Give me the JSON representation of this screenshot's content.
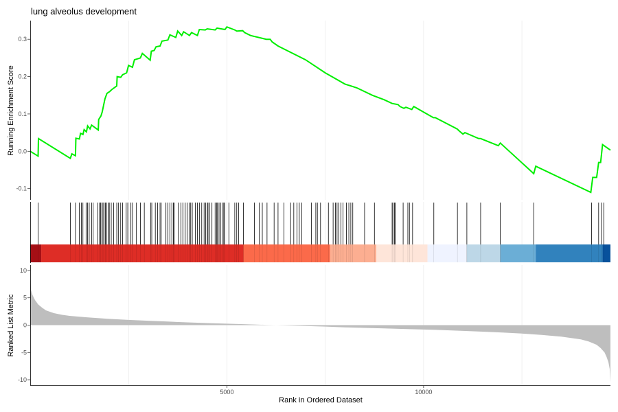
{
  "chart_data": {
    "type": "line",
    "title": "lung alveolus development",
    "x_axis": {
      "label": "Rank in Ordered Dataset",
      "range": [
        0,
        14750
      ],
      "ticks": [
        5000,
        10000
      ],
      "tick_labels": [
        "5000",
        "10000"
      ]
    },
    "vertical_gridlines": [
      2500,
      5000,
      7500,
      10000,
      12500
    ],
    "panels": [
      {
        "name": "running-enrichment-score",
        "type": "line",
        "ylabel": "Running Enrichment Score",
        "ylim": [
          -0.13,
          0.35
        ],
        "yticks": [
          -0.1,
          0.0,
          0.1,
          0.2,
          0.3
        ],
        "ytick_labels": [
          "-0.1",
          "0.0",
          "0.1",
          "0.2",
          "0.3"
        ],
        "line_color": "#00ee00",
        "x": [
          0,
          200,
          210,
          1020,
          1060,
          1150,
          1160,
          1250,
          1280,
          1340,
          1370,
          1430,
          1460,
          1520,
          1560,
          1730,
          1740,
          1800,
          1830,
          1900,
          1950,
          2020,
          2070,
          2200,
          2210,
          2300,
          2350,
          2450,
          2500,
          2600,
          2650,
          2800,
          2850,
          3050,
          3080,
          3150,
          3200,
          3300,
          3350,
          3500,
          3550,
          3700,
          3750,
          3850,
          3900,
          4050,
          4100,
          4250,
          4300,
          4450,
          4500,
          4700,
          4750,
          4950,
          5000,
          5200,
          5250,
          5400,
          5450,
          5600,
          6000,
          6100,
          6150,
          6300,
          7000,
          7500,
          8000,
          8300,
          8700,
          9000,
          9200,
          9350,
          9400,
          9500,
          9550,
          9700,
          9750,
          10250,
          10300,
          10850,
          10900,
          11000,
          11050,
          11400,
          11450,
          11900,
          11950,
          12800,
          12850,
          14250,
          14300,
          14400,
          14450,
          14500,
          14550,
          14750
        ],
        "y": [
          0.0,
          -0.013,
          0.034,
          -0.019,
          -0.007,
          -0.012,
          0.035,
          0.033,
          0.048,
          0.045,
          0.058,
          0.052,
          0.068,
          0.06,
          0.07,
          0.057,
          0.085,
          0.095,
          0.105,
          0.14,
          0.155,
          0.16,
          0.165,
          0.175,
          0.2,
          0.198,
          0.205,
          0.21,
          0.23,
          0.225,
          0.245,
          0.25,
          0.262,
          0.244,
          0.268,
          0.27,
          0.28,
          0.282,
          0.295,
          0.298,
          0.312,
          0.305,
          0.322,
          0.31,
          0.32,
          0.31,
          0.318,
          0.31,
          0.326,
          0.325,
          0.328,
          0.325,
          0.33,
          0.326,
          0.333,
          0.325,
          0.322,
          0.323,
          0.318,
          0.31,
          0.3,
          0.3,
          0.293,
          0.282,
          0.245,
          0.21,
          0.18,
          0.17,
          0.15,
          0.138,
          0.128,
          0.125,
          0.12,
          0.115,
          0.118,
          0.112,
          0.12,
          0.09,
          0.09,
          0.06,
          0.055,
          0.046,
          0.05,
          0.034,
          0.034,
          0.015,
          0.022,
          -0.06,
          -0.04,
          -0.11,
          -0.07,
          -0.07,
          -0.03,
          -0.03,
          0.018,
          0.003
        ]
      },
      {
        "name": "gene-hits",
        "type": "rug",
        "positions": [
          200,
          1020,
          1150,
          1250,
          1300,
          1340,
          1420,
          1460,
          1500,
          1560,
          1600,
          1720,
          1760,
          1790,
          1820,
          1850,
          1880,
          1910,
          1940,
          1980,
          2010,
          2060,
          2120,
          2200,
          2240,
          2300,
          2350,
          2440,
          2480,
          2560,
          2600,
          2700,
          2800,
          2900,
          3060,
          3090,
          3180,
          3240,
          3300,
          3330,
          3450,
          3500,
          3550,
          3600,
          3640,
          3660,
          3760,
          3830,
          3880,
          3940,
          3990,
          4040,
          4080,
          4120,
          4200,
          4250,
          4300,
          4360,
          4420,
          4460,
          4500,
          4520,
          4560,
          4620,
          4700,
          4740,
          4760,
          4800,
          4840,
          4880,
          4920,
          4940,
          5050,
          5200,
          5250,
          5300,
          5420,
          5700,
          5820,
          5900,
          6020,
          6200,
          6300,
          6450,
          6620,
          6700,
          6780,
          6840,
          6900,
          7150,
          7260,
          7300,
          7380,
          7580,
          7700,
          7760,
          7800,
          7840,
          7900,
          7950,
          8040,
          8100,
          8150,
          8200,
          8500,
          8750,
          9200,
          9220,
          9260,
          9280,
          9480,
          9600,
          9640,
          9720,
          10260,
          10860,
          11100,
          11450,
          11950,
          12800,
          14270,
          14450,
          14520,
          14580
        ]
      },
      {
        "name": "ranked-list-metric",
        "type": "area",
        "ylabel": "Ranked List Metric",
        "ylim": [
          -11,
          11
        ],
        "yticks": [
          10,
          5,
          0,
          -5,
          -10
        ],
        "ytick_labels": [
          "10",
          "5",
          "0",
          "-5",
          "-10"
        ],
        "fill_color": "#bebebe",
        "x": [
          0,
          20,
          60,
          120,
          200,
          300,
          400,
          600,
          800,
          1000,
          1500,
          2000,
          2500,
          3000,
          3500,
          4000,
          4500,
          5000,
          5500,
          6000,
          6500,
          7000,
          7500,
          8000,
          8500,
          9000,
          9500,
          10000,
          10500,
          11000,
          11500,
          12000,
          12500,
          13000,
          13500,
          14000,
          14200,
          14400,
          14500,
          14600,
          14650,
          14700,
          14730,
          14750
        ],
        "y": [
          8.5,
          6.5,
          5.5,
          4.6,
          3.8,
          3.2,
          2.7,
          2.2,
          1.9,
          1.7,
          1.4,
          1.15,
          0.95,
          0.8,
          0.65,
          0.5,
          0.38,
          0.27,
          0.15,
          0.05,
          -0.05,
          -0.15,
          -0.27,
          -0.4,
          -0.5,
          -0.6,
          -0.7,
          -0.8,
          -0.9,
          -1.05,
          -1.2,
          -1.35,
          -1.55,
          -1.8,
          -2.1,
          -2.6,
          -3.0,
          -3.6,
          -4.2,
          -5.0,
          -5.8,
          -6.8,
          -8.0,
          -10.5
        ]
      }
    ],
    "rank_color_bar": [
      {
        "from": 0,
        "to": 280,
        "color": "#a50f15"
      },
      {
        "from": 280,
        "to": 5420,
        "color": "#de2d26"
      },
      {
        "from": 5420,
        "to": 7620,
        "color": "#fb6a4a"
      },
      {
        "from": 7620,
        "to": 8800,
        "color": "#fcae91"
      },
      {
        "from": 8800,
        "to": 10100,
        "color": "#fee5d9"
      },
      {
        "from": 10100,
        "to": 11100,
        "color": "#eff3ff"
      },
      {
        "from": 11100,
        "to": 11950,
        "color": "#bdd7e7"
      },
      {
        "from": 11950,
        "to": 12850,
        "color": "#6baed6"
      },
      {
        "from": 12850,
        "to": 14550,
        "color": "#3182bd"
      },
      {
        "from": 14550,
        "to": 14750,
        "color": "#08519c"
      }
    ]
  }
}
